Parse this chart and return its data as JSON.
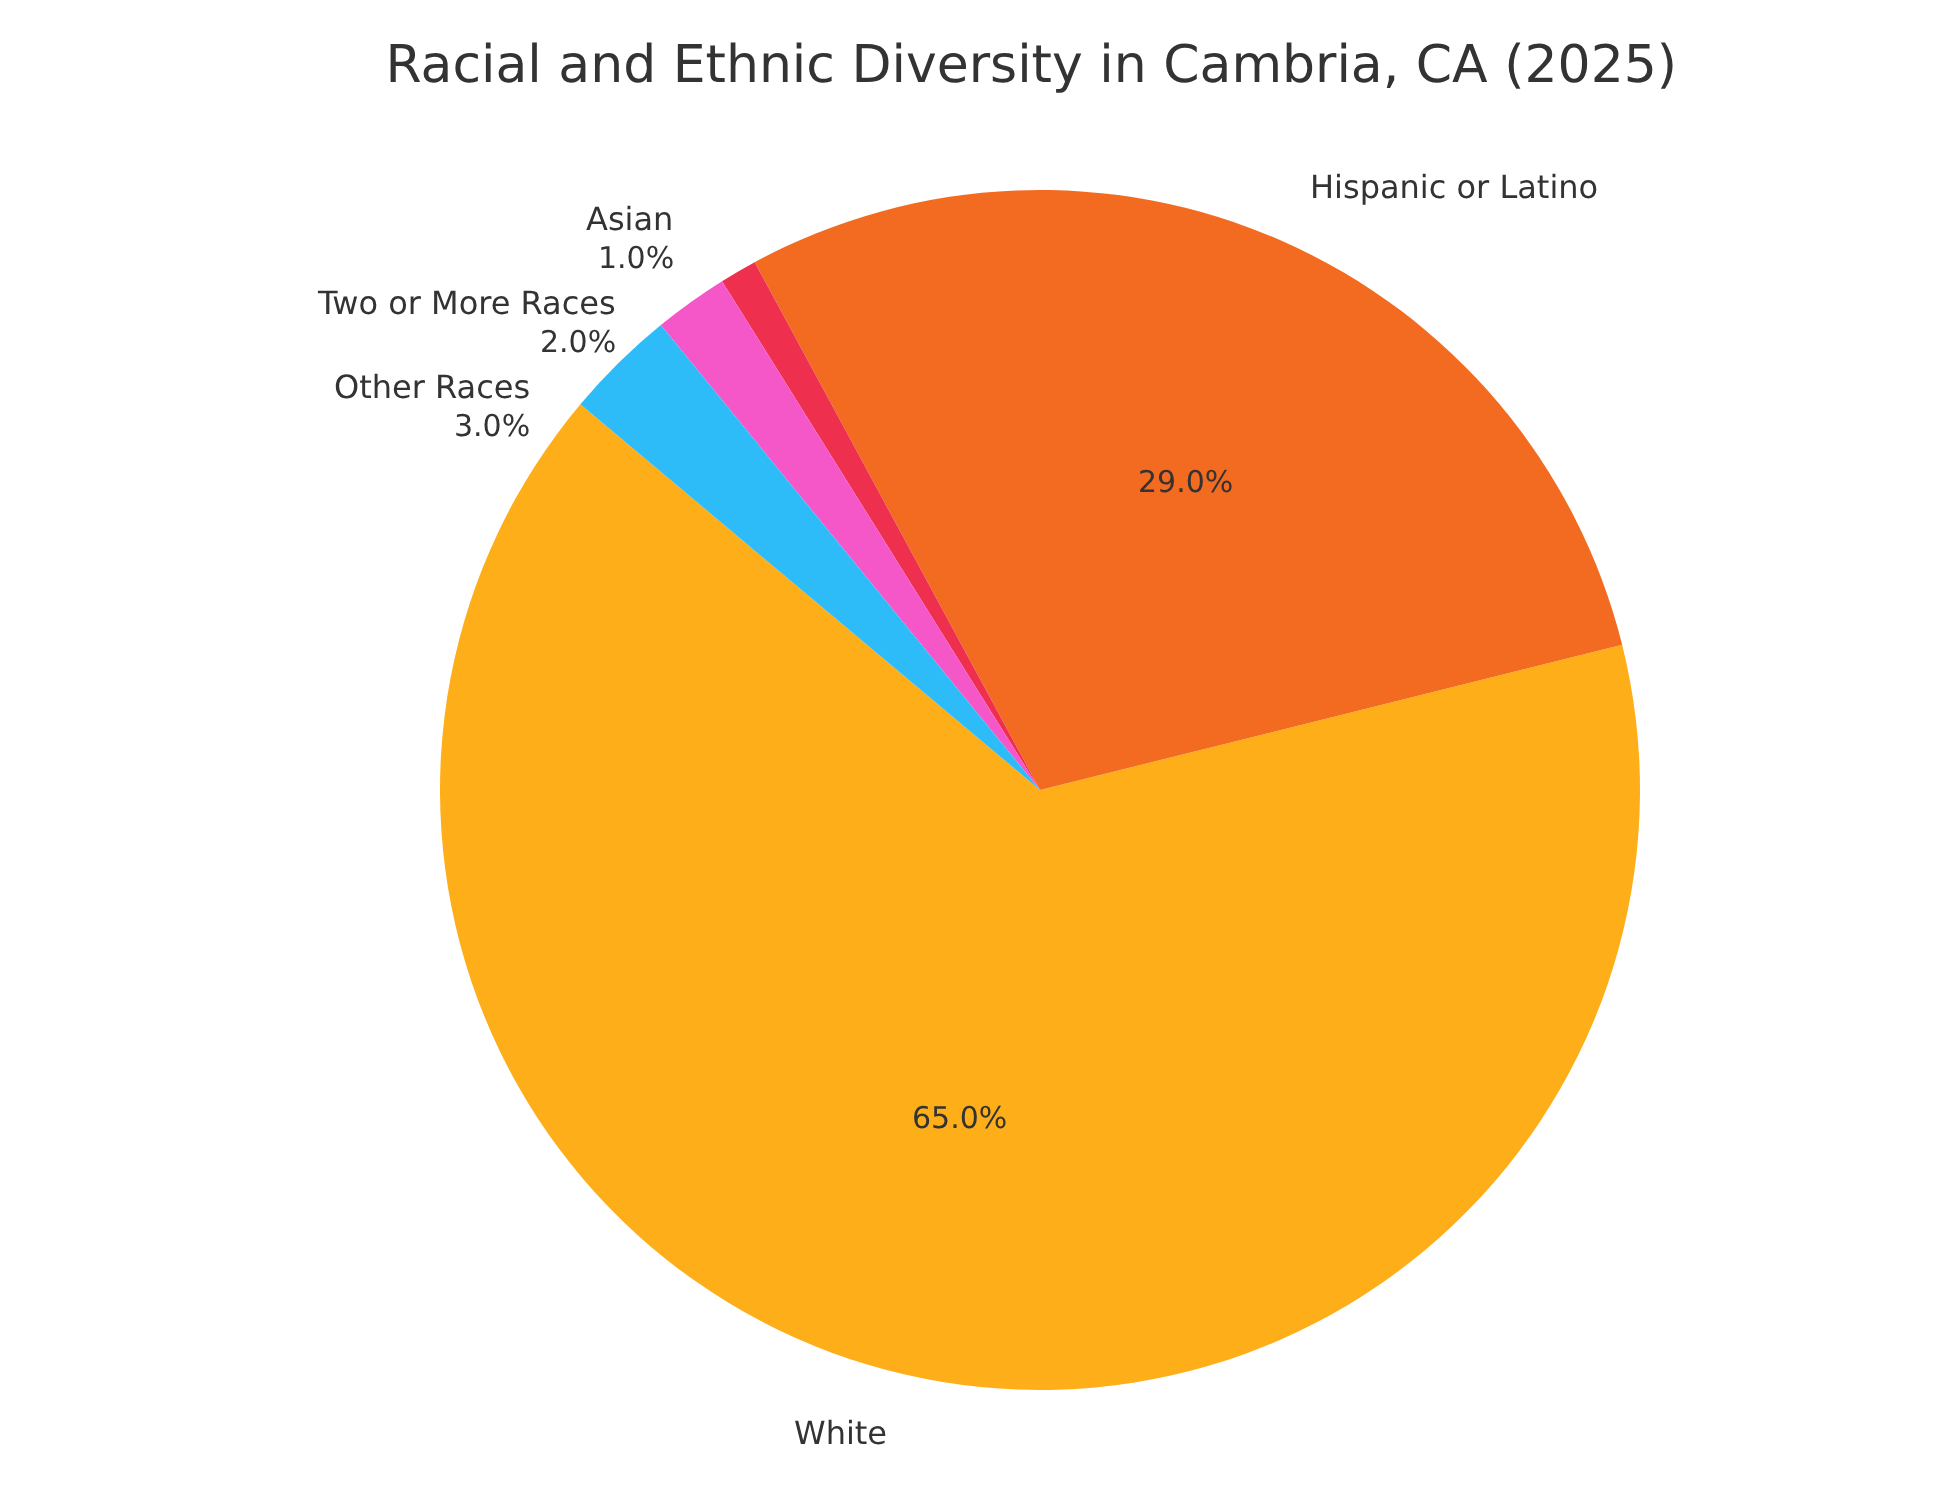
{
  "chart_data": {
    "type": "pie",
    "title": "Racial and Ethnic Diversity in Cambria, CA (2025)",
    "categories": [
      "White",
      "Hispanic or Latino",
      "Asian",
      "Two or More Races",
      "Other Races"
    ],
    "values": [
      65,
      29,
      1,
      2,
      3
    ],
    "value_labels": [
      "65.0%",
      "29.0%",
      "1.0%",
      "2.0%",
      "3.0%"
    ],
    "colors": [
      "#fdae19",
      "#f26b21",
      "#ee2f4e",
      "#f557c8",
      "#2ebcf8"
    ],
    "legend": false
  }
}
